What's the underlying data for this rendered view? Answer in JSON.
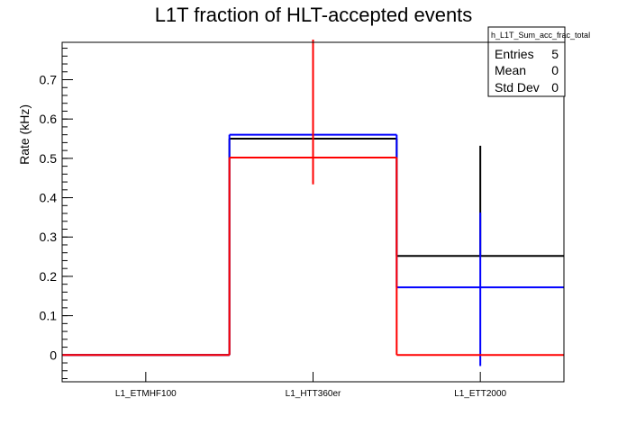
{
  "chart_data": {
    "type": "histogram",
    "title": "L1T fraction of HLT-accepted events",
    "ylabel": "Rate (kHz)",
    "xlabel": "",
    "categories": [
      "L1_ETMHF100",
      "L1_HTT360er",
      "L1_ETT2000"
    ],
    "ylim": [
      -0.068,
      0.795
    ],
    "yticks": [
      0,
      0.1,
      0.2,
      0.3,
      0.4,
      0.5,
      0.6,
      0.7
    ],
    "ytick_labels": [
      "0",
      "0.1",
      "0.2",
      "0.3",
      "0.4",
      "0.5",
      "0.6",
      "0.7"
    ],
    "grid": false,
    "series": [
      {
        "color": "#000000",
        "values": [
          0.0,
          0.55,
          0.252
        ],
        "errors_low": [
          0.0,
          0.0,
          0.0
        ],
        "errors_high": [
          0.0,
          0.0,
          0.28
        ]
      },
      {
        "color": "#0000ff",
        "values": [
          0.0,
          0.56,
          0.172
        ],
        "errors_low": [
          0.0,
          0.0,
          0.2
        ],
        "errors_high": [
          0.0,
          0.0,
          0.19
        ]
      },
      {
        "color": "#ff0000",
        "values": [
          0.0,
          0.502,
          0.0
        ],
        "errors_low": [
          0.0,
          0.068,
          0.0
        ],
        "errors_high": [
          0.0,
          0.3,
          0.0
        ]
      }
    ],
    "stats_box": {
      "name": "h_L1T_Sum_acc_frac_total",
      "rows": [
        {
          "label": "Entries",
          "value": "5"
        },
        {
          "label": "Mean",
          "value": "0"
        },
        {
          "label": "Std Dev",
          "value": "0"
        }
      ],
      "placement": "top-right"
    }
  }
}
